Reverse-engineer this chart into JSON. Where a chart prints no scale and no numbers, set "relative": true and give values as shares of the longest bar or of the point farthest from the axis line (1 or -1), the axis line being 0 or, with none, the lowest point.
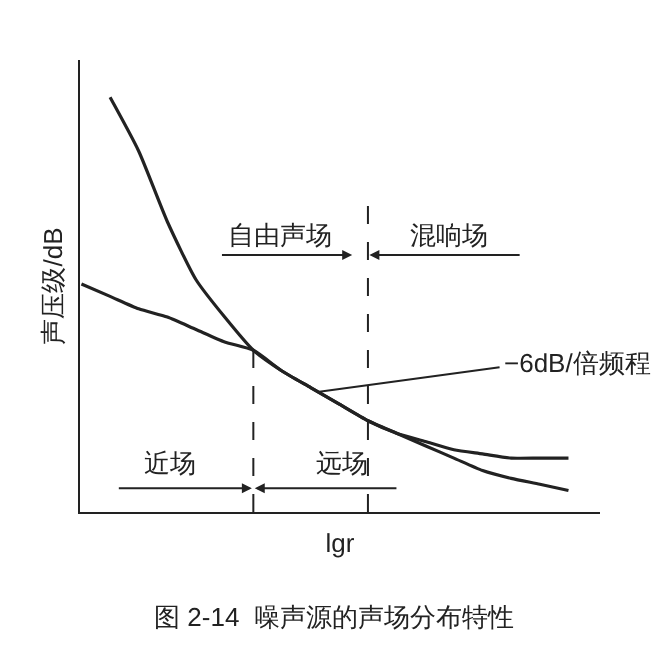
{
  "chart_data": {
    "type": "line",
    "relative": true,
    "title": "图 2-14  噪声源的声场分布特性",
    "xlabel": "lgr",
    "ylabel": "声压级/dB",
    "categories": [
      null,
      null,
      null,
      null,
      null,
      null,
      null,
      null,
      null,
      null,
      null,
      null,
      null,
      null,
      null,
      null,
      null,
      null
    ],
    "series": [
      {
        "color": "#222222",
        "values": [
          null,
          1.0,
          0.87,
          0.7,
          0.56,
          0.47,
          0.39,
          0.34,
          0.3,
          0.26,
          0.22,
          0.19,
          0.16,
          0.13,
          0.1,
          0.081,
          0.067,
          0.052
        ]
      },
      {
        "color": "#222222",
        "values": [
          0.55,
          0.52,
          0.49,
          0.47,
          0.44,
          0.41,
          0.39,
          0.34,
          0.3,
          0.26,
          0.22,
          0.19,
          0.17,
          0.15,
          0.14,
          0.13,
          0.13,
          0.13
        ]
      }
    ],
    "annotations": [
      "自由声场",
      "混响场",
      "近场",
      "远场",
      "−6dB/倍频程"
    ],
    "marker": "none",
    "line_style": "solid"
  }
}
